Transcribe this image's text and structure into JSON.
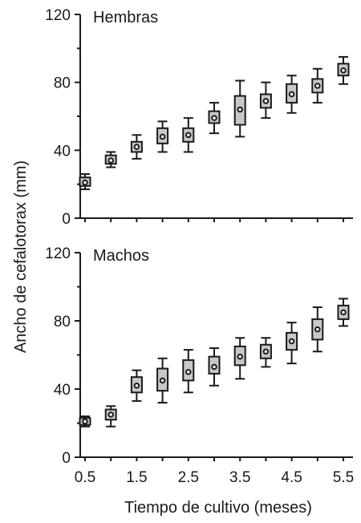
{
  "chart_data": {
    "type": "boxplot",
    "ylabel": "Ancho de cefalotorax (mm)",
    "xlabel": "Tiempo de cultivo (meses)",
    "x_ticks": [
      "0.5",
      "1.5",
      "2.5",
      "3.5",
      "4.5",
      "5.5"
    ],
    "x": [
      0.5,
      1.0,
      1.5,
      2.0,
      2.5,
      3.0,
      3.5,
      4.0,
      4.5,
      5.0,
      5.5
    ],
    "xlim": [
      0.5,
      5.5
    ],
    "ylim": [
      0,
      120
    ],
    "y_ticks": [
      "0",
      "40",
      "80",
      "120"
    ],
    "box_color": "#c8c8c8",
    "panels": [
      {
        "name": "Hembras",
        "title": "Hembras",
        "median": [
          21,
          34,
          42,
          48,
          49,
          59,
          64,
          69,
          73,
          78,
          87
        ],
        "q1": [
          19,
          32,
          39,
          44,
          45,
          56,
          55,
          65,
          68,
          74,
          84
        ],
        "q3": [
          24,
          37,
          45,
          53,
          53,
          63,
          72,
          73,
          79,
          82,
          91
        ],
        "whisker_low": [
          17,
          30,
          35,
          39,
          39,
          50,
          48,
          59,
          62,
          68,
          79
        ],
        "whisker_high": [
          26,
          39,
          49,
          57,
          59,
          68,
          81,
          80,
          84,
          88,
          95
        ]
      },
      {
        "name": "Machos",
        "title": "Machos",
        "median": [
          21,
          25,
          42,
          45,
          50,
          53,
          59,
          62,
          68,
          75,
          85
        ],
        "q1": [
          19,
          22,
          38,
          39,
          45,
          49,
          54,
          58,
          63,
          69,
          81
        ],
        "q3": [
          23,
          28,
          47,
          52,
          57,
          59,
          65,
          66,
          73,
          81,
          89
        ],
        "whisker_low": [
          18,
          18,
          33,
          32,
          38,
          42,
          46,
          53,
          55,
          62,
          77
        ],
        "whisker_high": [
          24,
          30,
          51,
          58,
          63,
          64,
          70,
          70,
          79,
          88,
          93
        ]
      }
    ]
  }
}
